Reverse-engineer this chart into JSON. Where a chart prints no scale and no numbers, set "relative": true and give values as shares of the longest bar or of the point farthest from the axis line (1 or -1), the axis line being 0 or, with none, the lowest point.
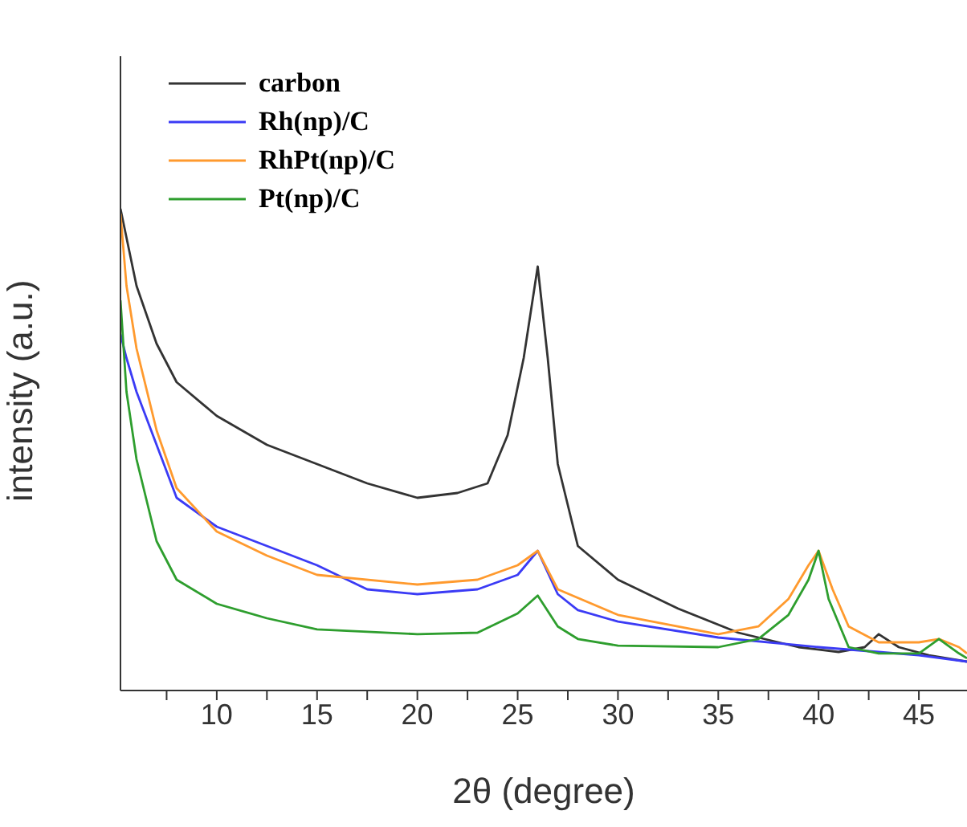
{
  "chart_data": {
    "type": "line",
    "relative": true,
    "xlabel": "2θ (degree)",
    "ylabel": "intensity (a.u.)",
    "xlim": [
      5.2,
      47.4
    ],
    "xticks": [
      {
        "value": 7.5,
        "label": null
      },
      10,
      {
        "value": 12.5,
        "label": null
      },
      15,
      {
        "value": 17.5,
        "label": null
      },
      20,
      {
        "value": 22.5,
        "label": null
      },
      25,
      {
        "value": 27.5,
        "label": null
      },
      30,
      {
        "value": 32.5,
        "label": null
      },
      35,
      {
        "value": 37.5,
        "label": null
      },
      40,
      {
        "value": 42.5,
        "label": null
      },
      45
    ],
    "legend": "top left",
    "marker": "none",
    "line_style": "solid",
    "grid": false,
    "series": [
      {
        "name": "carbon",
        "color": "#333333",
        "x": [
          5.2,
          6,
          7,
          8,
          10,
          12.5,
          15,
          17.5,
          20,
          22,
          23.5,
          24.5,
          25.3,
          26,
          26.5,
          27,
          28,
          30,
          33,
          36,
          39,
          41,
          42.3,
          43,
          44,
          45.5,
          47.4
        ],
        "values": [
          1.0,
          0.84,
          0.72,
          0.64,
          0.57,
          0.51,
          0.47,
          0.43,
          0.4,
          0.41,
          0.43,
          0.53,
          0.69,
          0.88,
          0.69,
          0.47,
          0.3,
          0.23,
          0.17,
          0.12,
          0.09,
          0.08,
          0.09,
          0.117,
          0.09,
          0.073,
          0.06
        ]
      },
      {
        "name": "Rh(np)/C",
        "color": "#3b3bf5",
        "x": [
          5.2,
          5.5,
          6,
          7,
          8,
          10,
          12.5,
          15,
          17.5,
          20,
          23,
          25,
          26,
          27,
          28,
          30,
          35,
          40,
          43,
          45,
          47.4
        ],
        "values": [
          0.74,
          0.69,
          0.62,
          0.51,
          0.4,
          0.34,
          0.3,
          0.26,
          0.21,
          0.2,
          0.21,
          0.24,
          0.29,
          0.2,
          0.167,
          0.143,
          0.11,
          0.09,
          0.08,
          0.073,
          0.06
        ]
      },
      {
        "name": "RhPt(np)/C",
        "color": "#ff9a2e",
        "x": [
          5.2,
          5.5,
          6,
          7,
          8,
          10,
          12.5,
          15,
          20,
          23,
          25,
          26,
          27,
          30,
          35,
          37,
          38.5,
          39.5,
          40,
          40.7,
          41.5,
          43,
          45,
          46,
          47,
          47.4
        ],
        "values": [
          0.99,
          0.84,
          0.71,
          0.54,
          0.42,
          0.33,
          0.28,
          0.24,
          0.22,
          0.23,
          0.26,
          0.29,
          0.21,
          0.157,
          0.117,
          0.133,
          0.19,
          0.26,
          0.29,
          0.21,
          0.133,
          0.1,
          0.1,
          0.107,
          0.09,
          0.077
        ]
      },
      {
        "name": "Pt(np)/C",
        "color": "#2e9e2e",
        "x": [
          5.2,
          5.5,
          6,
          7,
          8,
          10,
          12.5,
          15,
          20,
          23,
          25,
          26,
          27,
          28,
          30,
          35,
          37,
          38.5,
          39.5,
          40,
          40.5,
          41.5,
          43,
          45,
          46,
          47,
          47.4
        ],
        "values": [
          0.81,
          0.62,
          0.48,
          0.31,
          0.23,
          0.18,
          0.15,
          0.127,
          0.117,
          0.12,
          0.16,
          0.197,
          0.133,
          0.107,
          0.093,
          0.09,
          0.107,
          0.157,
          0.23,
          0.29,
          0.19,
          0.09,
          0.077,
          0.077,
          0.107,
          0.077,
          0.067
        ]
      }
    ]
  }
}
